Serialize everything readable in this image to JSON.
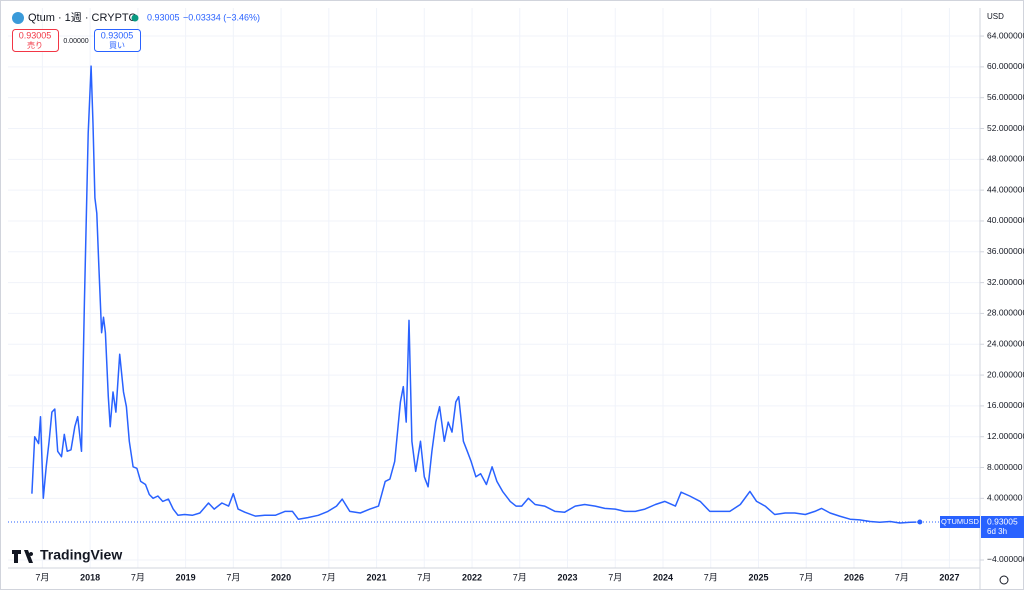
{
  "header": {
    "symbol": "Qtum · 1週 · CRYPTO",
    "price": "0.93005",
    "change": "−0.03334 (−3.46%)",
    "sell_price": "0.93005",
    "sell_label": "売り",
    "spread": "0.00000",
    "buy_price": "0.93005",
    "buy_label": "買い",
    "currency": "USD",
    "countdown": "6d 3h",
    "brand": "TradingView"
  },
  "chart_data": {
    "type": "line",
    "x": [
      2017.39,
      2017.42,
      2017.46,
      2017.48,
      2017.51,
      2017.54,
      2017.57,
      2017.6,
      2017.63,
      2017.66,
      2017.7,
      2017.73,
      2017.76,
      2017.8,
      2017.84,
      2017.87,
      2017.91,
      2017.94,
      2017.98,
      2018.01,
      2018.03,
      2018.05,
      2018.07,
      2018.09,
      2018.12,
      2018.14,
      2018.16,
      2018.19,
      2018.21,
      2018.24,
      2018.27,
      2018.31,
      2018.35,
      2018.38,
      2018.41,
      2018.45,
      2018.49,
      2018.53,
      2018.58,
      2018.62,
      2018.66,
      2018.71,
      2018.76,
      2018.82,
      2018.87,
      2018.92,
      2018.99,
      2019.07,
      2019.15,
      2019.24,
      2019.3,
      2019.38,
      2019.45,
      2019.5,
      2019.55,
      2019.62,
      2019.73,
      2019.83,
      2019.94,
      2020.04,
      2020.12,
      2020.18,
      2020.28,
      2020.39,
      2020.49,
      2020.58,
      2020.64,
      2020.72,
      2020.83,
      2020.93,
      2021.02,
      2021.09,
      2021.14,
      2021.19,
      2021.25,
      2021.28,
      2021.31,
      2021.34,
      2021.37,
      2021.41,
      2021.46,
      2021.5,
      2021.54,
      2021.58,
      2021.62,
      2021.66,
      2021.71,
      2021.75,
      2021.79,
      2021.83,
      2021.86,
      2021.91,
      2021.95,
      2021.99,
      2022.04,
      2022.09,
      2022.15,
      2022.21,
      2022.26,
      2022.32,
      2022.4,
      2022.46,
      2022.52,
      2022.59,
      2022.66,
      2022.76,
      2022.87,
      2022.97,
      2023.08,
      2023.18,
      2023.29,
      2023.39,
      2023.5,
      2023.6,
      2023.71,
      2023.81,
      2023.92,
      2024.02,
      2024.13,
      2024.19,
      2024.28,
      2024.39,
      2024.49,
      2024.6,
      2024.7,
      2024.81,
      2024.91,
      2024.98,
      2025.07,
      2025.17,
      2025.28,
      2025.38,
      2025.49,
      2025.59,
      2025.66,
      2025.75,
      2025.85,
      2025.96,
      2026.06,
      2026.17,
      2026.27,
      2026.38,
      2026.48,
      2026.59,
      2026.69
    ],
    "series": [
      {
        "name": "QTUMUSD",
        "color": "#2962ff",
        "values": [
          4.6,
          12.0,
          11.1,
          14.6,
          4.0,
          8.1,
          11.4,
          15.2,
          15.6,
          10.1,
          9.4,
          12.3,
          10.1,
          10.3,
          13.3,
          14.6,
          10.1,
          29.4,
          51.4,
          60.1,
          52.6,
          43.0,
          41.0,
          34.6,
          25.5,
          27.5,
          25.5,
          17.2,
          13.3,
          17.8,
          15.2,
          22.7,
          17.8,
          15.9,
          11.4,
          8.1,
          7.9,
          6.2,
          5.8,
          4.5,
          4.0,
          4.3,
          3.6,
          3.9,
          2.6,
          1.8,
          1.9,
          1.8,
          2.1,
          3.4,
          2.6,
          3.4,
          3.0,
          4.6,
          2.6,
          2.2,
          1.7,
          1.8,
          1.8,
          2.3,
          2.3,
          1.3,
          1.5,
          1.8,
          2.3,
          3.0,
          3.9,
          2.3,
          2.1,
          2.6,
          3.0,
          6.2,
          6.5,
          8.8,
          16.5,
          18.5,
          13.9,
          27.1,
          11.4,
          7.5,
          11.4,
          6.8,
          5.5,
          10.1,
          13.9,
          15.9,
          11.4,
          13.9,
          12.6,
          16.5,
          17.2,
          11.4,
          10.1,
          8.8,
          6.8,
          7.2,
          5.8,
          8.1,
          6.2,
          4.9,
          3.6,
          3.0,
          3.0,
          4.0,
          3.2,
          3.0,
          2.3,
          2.2,
          3.0,
          3.2,
          3.0,
          2.7,
          2.6,
          2.3,
          2.3,
          2.6,
          3.2,
          3.6,
          3.0,
          4.8,
          4.3,
          3.6,
          2.3,
          2.3,
          2.3,
          3.2,
          4.9,
          3.6,
          3.0,
          1.9,
          2.1,
          2.1,
          1.9,
          2.3,
          2.7,
          2.1,
          1.7,
          1.3,
          1.2,
          1.0,
          0.9,
          1.0,
          0.8,
          0.9,
          0.93
        ]
      }
    ],
    "last_price": 0.93005,
    "xlim": [
      2017.14,
      2027.32
    ],
    "xticks": [
      {
        "value": 2017.5,
        "label": "7月"
      },
      2018,
      {
        "value": 2018.5,
        "label": "7月"
      },
      2019,
      {
        "value": 2019.5,
        "label": "7月"
      },
      2020,
      {
        "value": 2020.5,
        "label": "7月"
      },
      2021,
      {
        "value": 2021.5,
        "label": "7月"
      },
      2022,
      {
        "value": 2022.5,
        "label": "7月"
      },
      2023,
      {
        "value": 2023.5,
        "label": "7月"
      },
      2024,
      {
        "value": 2024.5,
        "label": "7月"
      },
      2025,
      {
        "value": 2025.5,
        "label": "7月"
      },
      2026,
      {
        "value": 2026.5,
        "label": "7月"
      },
      2027
    ],
    "ylim": [
      -5.04,
      67.64
    ],
    "yticks": [
      {
        "value": -4,
        "label": "−4.000000"
      },
      {
        "value": 4,
        "label": "4.000000"
      },
      {
        "value": 8,
        "label": "8.000000"
      },
      {
        "value": 12,
        "label": "12.000000"
      },
      {
        "value": 16,
        "label": "16.000000"
      },
      {
        "value": 20,
        "label": "20.000000"
      },
      {
        "value": 24,
        "label": "24.000000"
      },
      {
        "value": 28,
        "label": "28.000000"
      },
      {
        "value": 32,
        "label": "32.000000"
      },
      {
        "value": 36,
        "label": "36.000000"
      },
      {
        "value": 40,
        "label": "40.000000"
      },
      {
        "value": 44,
        "label": "44.000000"
      },
      {
        "value": 48,
        "label": "48.000000"
      },
      {
        "value": 52,
        "label": "52.000000"
      },
      {
        "value": 56,
        "label": "56.000000"
      },
      {
        "value": 60,
        "label": "60.000000"
      },
      {
        "value": 64,
        "label": "64.000000"
      }
    ],
    "grid": true
  }
}
